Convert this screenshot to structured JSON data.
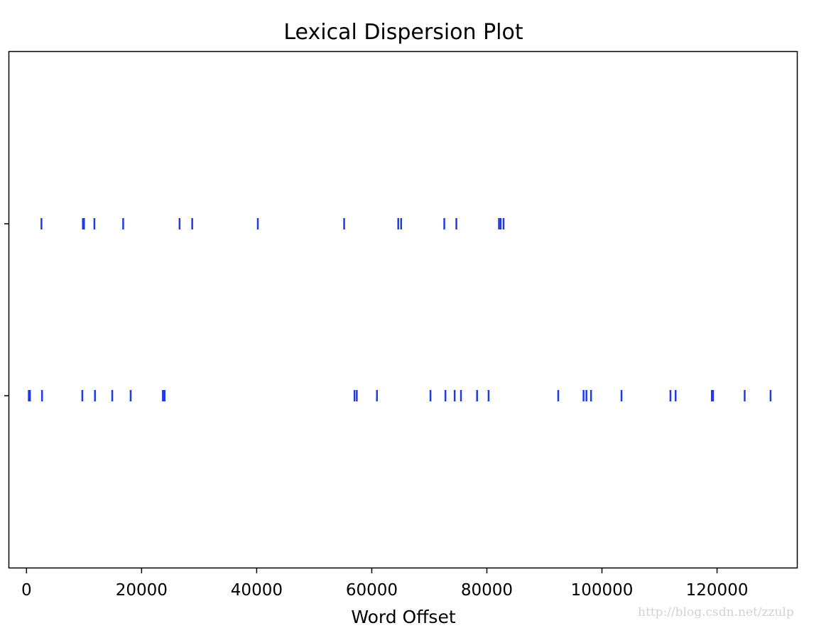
{
  "chart_data": {
    "type": "scatter",
    "title": "Lexical Dispersion Plot",
    "xlabel": "Word Offset",
    "ylabel": "",
    "xlim": [
      -3000,
      134000
    ],
    "x_ticks": [
      0,
      20000,
      40000,
      60000,
      80000,
      100000,
      120000
    ],
    "y_ticks": [],
    "grid": false,
    "legend": "none",
    "marker": "|",
    "mark_color": "#1f3be6",
    "series": [
      {
        "x": [
          2600,
          9800,
          10000,
          11800,
          16800,
          26600,
          28800,
          40200,
          55200,
          64600,
          65100,
          72600,
          74700,
          82100,
          82400,
          82900
        ]
      },
      {
        "x": [
          400,
          600,
          2700,
          9700,
          11900,
          14900,
          18100,
          23700,
          24000,
          57000,
          57400,
          60900,
          70200,
          72800,
          74400,
          75500,
          78300,
          80300,
          92400,
          96800,
          97300,
          98100,
          103400,
          111900,
          112800,
          119100,
          119300,
          124800,
          129300
        ]
      }
    ]
  },
  "watermark": "http://blog.csdn.net/zzulp"
}
